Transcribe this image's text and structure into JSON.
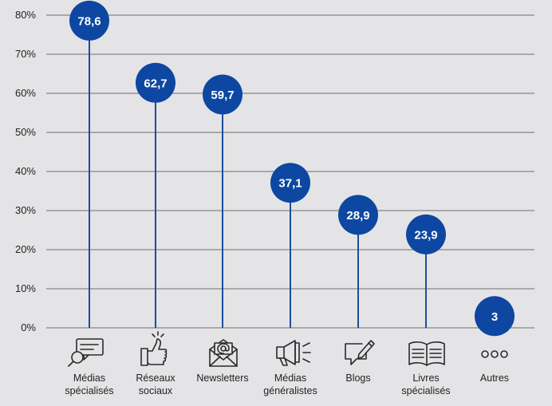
{
  "chart_data": {
    "type": "lollipop",
    "title": "",
    "xlabel": "",
    "ylabel": "",
    "ylim": [
      0,
      80
    ],
    "y_ticks": [
      "0%",
      "10%",
      "20%",
      "30%",
      "40%",
      "50%",
      "60%",
      "70%",
      "80%"
    ],
    "grid": true,
    "categories": [
      [
        "Médias",
        "spécialisés"
      ],
      [
        "Réseaux",
        "sociaux"
      ],
      [
        "Newsletters"
      ],
      [
        "Médias",
        "généralistes"
      ],
      [
        "Blogs"
      ],
      [
        "Livres",
        "spécialisés"
      ],
      [
        "Autres"
      ]
    ],
    "values": [
      78.6,
      62.7,
      59.7,
      37.1,
      28.9,
      23.9,
      3
    ],
    "value_labels": [
      "78,6",
      "62,7",
      "59,7",
      "37,1",
      "28,9",
      "23,9",
      "3"
    ],
    "icons": [
      "magnifier-chat-icon",
      "thumbs-up-icon",
      "envelope-at-icon",
      "megaphone-icon",
      "comment-pencil-icon",
      "open-book-icon",
      "ellipsis-icon"
    ],
    "colors": {
      "marker": "#0d47a1",
      "stem": "#1a4f9c",
      "grid": "#6e6e6e",
      "background": "#e4e4e6"
    }
  }
}
